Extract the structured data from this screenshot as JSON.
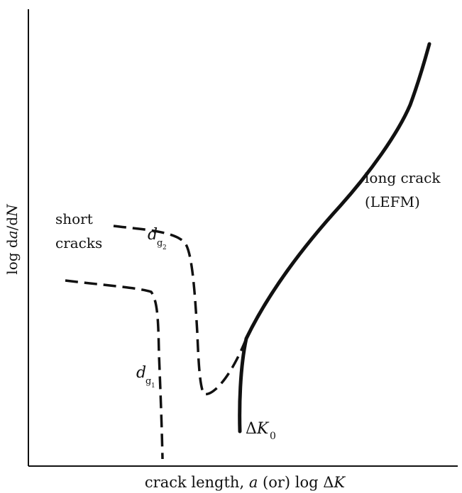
{
  "chart_data": {
    "type": "line",
    "xlabel": {
      "prefix": "crack length, ",
      "var": "a",
      "middle": " (or) log Δ",
      "var2": "K"
    },
    "ylabel": {
      "prefix": "log d",
      "var": "a",
      "mid": "/d",
      "var2": "N"
    },
    "series": [
      {
        "name": "long crack (LEFM)",
        "line_lines": [
          "long crack",
          "(LEFM)"
        ],
        "style": "solid"
      },
      {
        "name": "short cracks",
        "line_lines": [
          "short",
          "cracks"
        ],
        "style": "dashed"
      }
    ],
    "annotations": {
      "dg2": {
        "base": "d",
        "sub": "g",
        "subsub": "2"
      },
      "dg1": {
        "base": "d",
        "sub": "g",
        "subsub": "1"
      },
      "threshold": {
        "prefix": "Δ",
        "var": "K",
        "sub": "0"
      }
    },
    "grid": false,
    "tick_labels": false
  },
  "colors": {
    "ink": "#111111",
    "background": "#ffffff"
  }
}
